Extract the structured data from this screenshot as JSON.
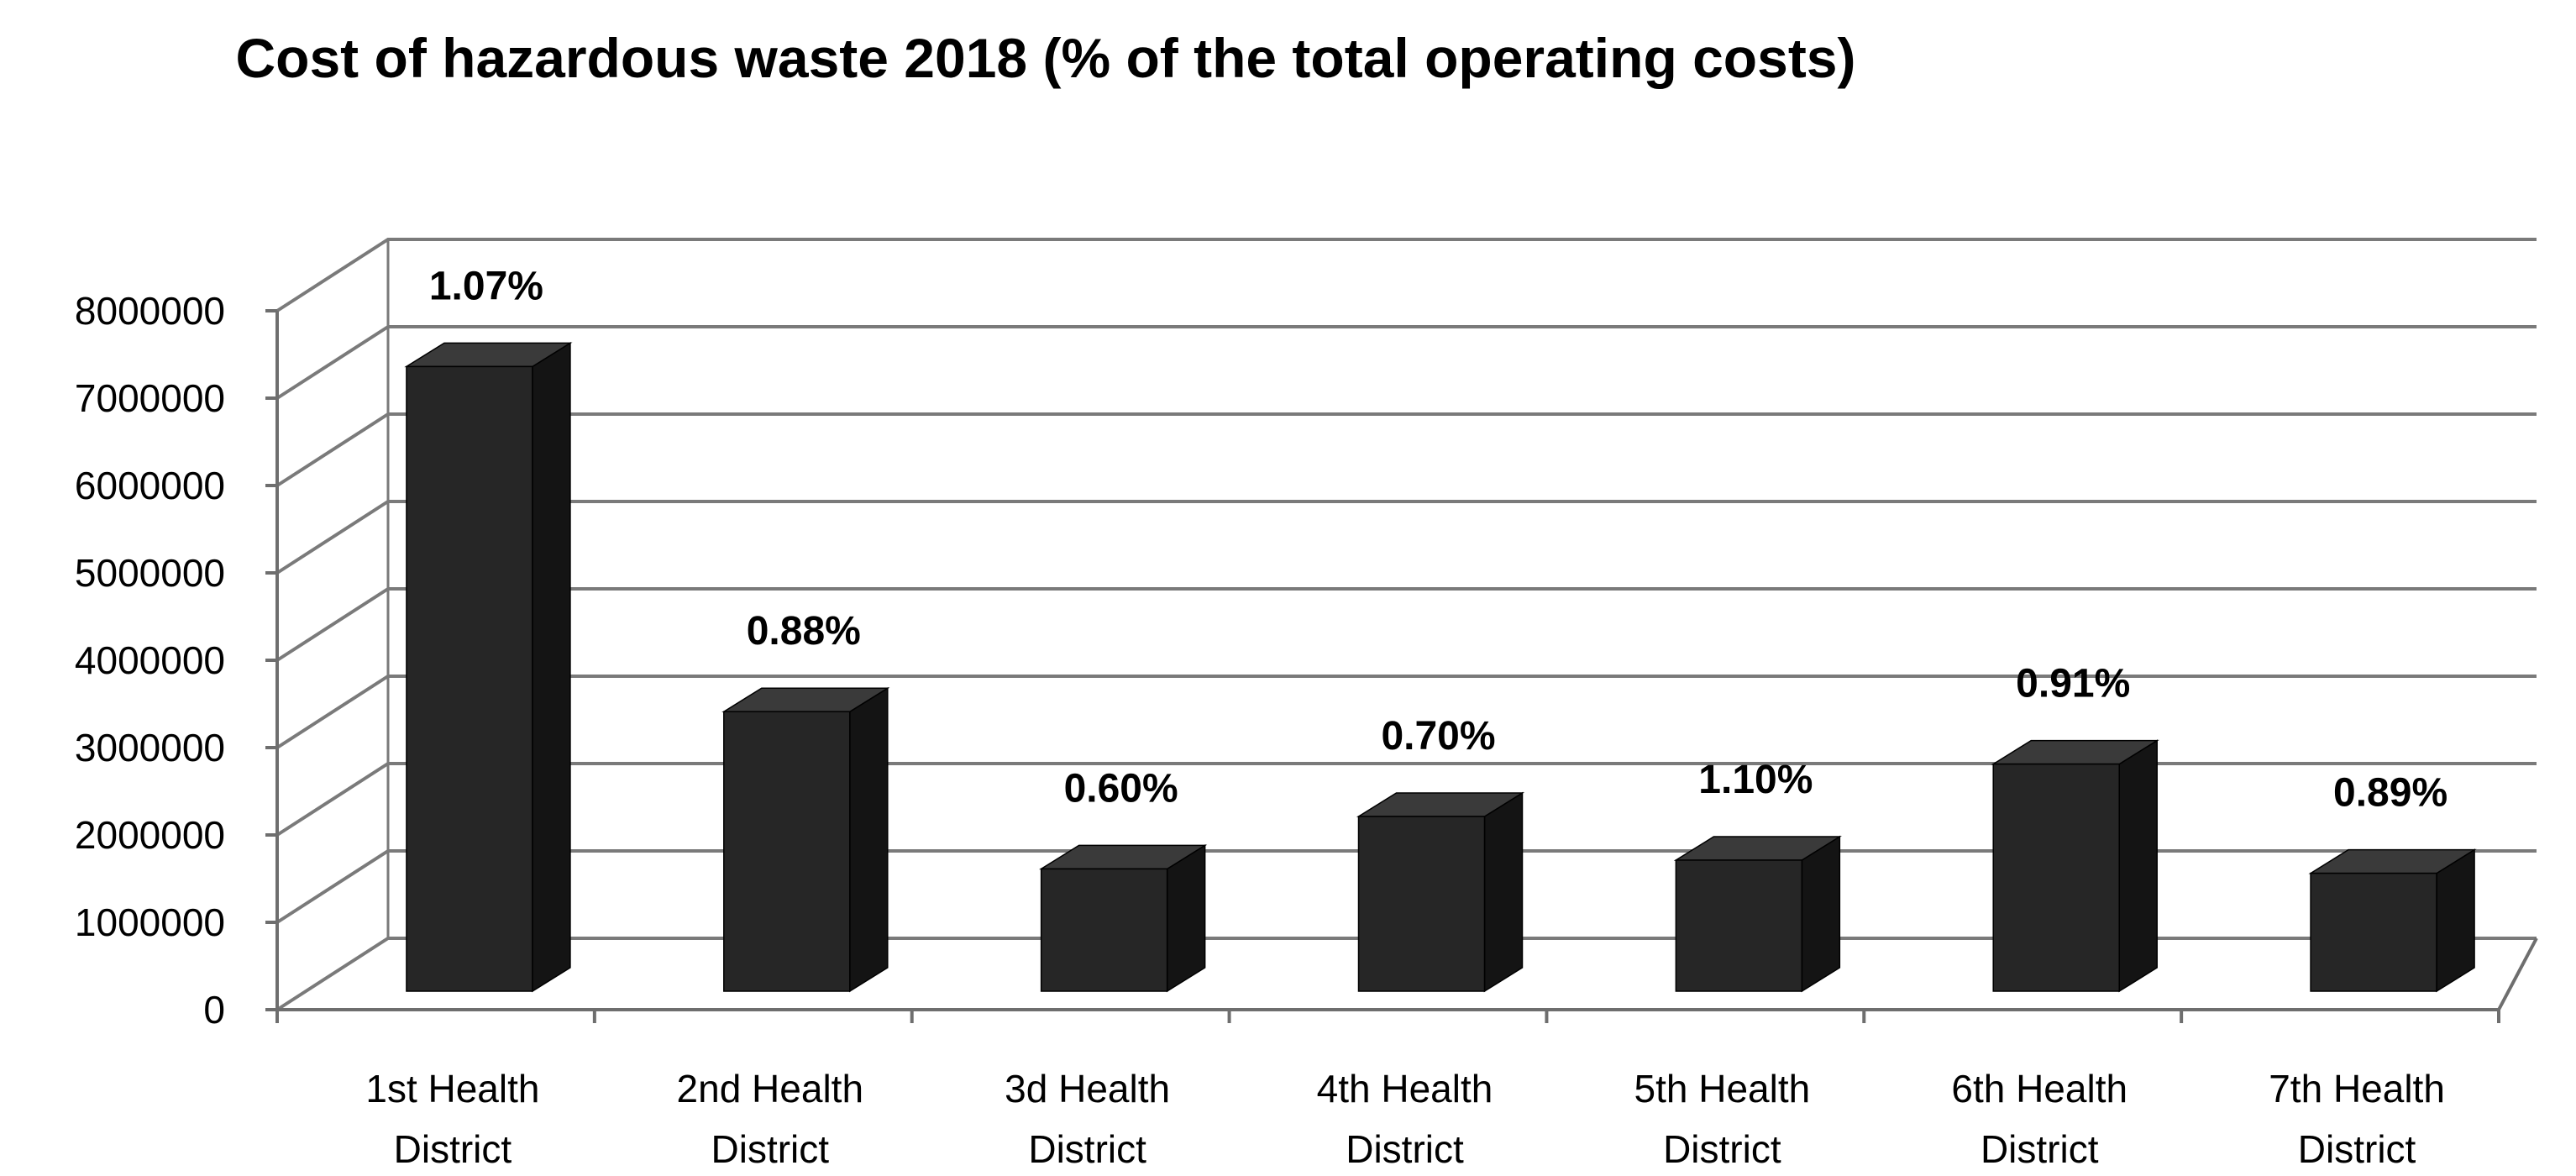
{
  "chart_data": {
    "type": "bar",
    "style": "3d-column",
    "title": "Cost of hazardous waste 2018 (% of the total operating costs)",
    "xlabel": "",
    "ylabel": "",
    "ylim": [
      0,
      8000000
    ],
    "ytick_step": 1000000,
    "yticks": [
      "0",
      "1000000",
      "2000000",
      "3000000",
      "4000000",
      "5000000",
      "6000000",
      "7000000",
      "8000000"
    ],
    "categories": [
      [
        "1st Health",
        "District"
      ],
      [
        "2nd Health",
        "District"
      ],
      [
        "3d Health",
        "District"
      ],
      [
        "4th Health",
        "District"
      ],
      [
        "5th Health",
        "District"
      ],
      [
        "6th Health",
        "District"
      ],
      [
        "7th Health",
        "District"
      ]
    ],
    "values": [
      7150000,
      3200000,
      1400000,
      2000000,
      1500000,
      2600000,
      1350000
    ],
    "data_labels": [
      "1.07%",
      "0.88%",
      "0.60%",
      "0.70%",
      "1.10%",
      "0.91%",
      "0.89%"
    ],
    "grid": true,
    "legend": "none",
    "colors": {
      "bar_front": "#262626",
      "bar_side": "#141414",
      "bar_top": "#3a3a3a",
      "grid": "#7a7a7a",
      "axis": "#6e6e6e",
      "text": "#000000",
      "background": "#ffffff"
    }
  }
}
